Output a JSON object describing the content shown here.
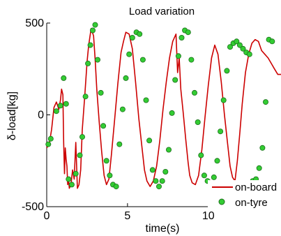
{
  "chart_data": {
    "type": "line",
    "title": "Load variation",
    "xlabel": "time(s)",
    "ylabel": "δ-load[kg]",
    "xlim": [
      0,
      14.5
    ],
    "ylim": [
      -500,
      500
    ],
    "xticks": [
      0,
      5,
      10
    ],
    "yticks": [
      -500,
      0,
      500
    ],
    "xtick_labels": [
      "0",
      "5",
      "10"
    ],
    "ytick_labels": [
      "-500",
      "0",
      "500"
    ],
    "grid": false,
    "legend_position": "bottom-right",
    "colors": {
      "on_board": "#cc0000",
      "on_tyre_fill": "#33cc33",
      "on_tyre_edge": "#1a6e1a",
      "axis": "#000000"
    },
    "series": [
      {
        "name": "on-board",
        "style": "line",
        "x": [
          0,
          0.15,
          0.3,
          0.45,
          0.6,
          0.75,
          0.85,
          0.92,
          1.0,
          1.05,
          1.1,
          1.15,
          1.2,
          1.25,
          1.3,
          1.35,
          1.4,
          1.5,
          1.6,
          1.7,
          1.8,
          1.9,
          2.0,
          2.1,
          2.2,
          2.35,
          2.5,
          2.6,
          2.75,
          2.9,
          3.0,
          3.1,
          3.25,
          3.4,
          3.55,
          3.7,
          3.85,
          4.0,
          4.2,
          4.4,
          4.6,
          4.75,
          4.9,
          5.1,
          5.3,
          5.5,
          5.7,
          5.9,
          6.05,
          6.2,
          6.4,
          6.6,
          6.8,
          7.0,
          7.2,
          7.4,
          7.6,
          7.8,
          8.0,
          8.1,
          8.2,
          8.3,
          8.45,
          8.6,
          8.75,
          8.85,
          9.0,
          9.2,
          9.4,
          9.6,
          9.8,
          10.0,
          10.2,
          10.4,
          10.6,
          10.8,
          11.0,
          11.2,
          11.35,
          11.5,
          11.65,
          11.8,
          11.95,
          12.1,
          12.3,
          12.5,
          12.7,
          12.9,
          13.1,
          13.3,
          13.5,
          13.7,
          13.9,
          14.1,
          14.3,
          14.5
        ],
        "y": [
          -180,
          -160,
          -80,
          40,
          70,
          30,
          80,
          140,
          110,
          -150,
          -320,
          -180,
          -240,
          -280,
          -380,
          -350,
          -400,
          -380,
          -300,
          -350,
          -150,
          -400,
          -380,
          -300,
          -80,
          100,
          290,
          380,
          470,
          430,
          300,
          140,
          -40,
          -200,
          -330,
          -380,
          -350,
          -220,
          -30,
          170,
          340,
          400,
          450,
          440,
          360,
          180,
          -20,
          -180,
          -300,
          -360,
          -390,
          -360,
          -280,
          -140,
          30,
          180,
          310,
          400,
          440,
          230,
          310,
          140,
          10,
          -130,
          -260,
          -330,
          -370,
          -380,
          -330,
          -190,
          -10,
          160,
          310,
          380,
          330,
          180,
          0,
          -160,
          -280,
          -340,
          -360,
          -250,
          -100,
          60,
          230,
          330,
          390,
          410,
          400,
          350,
          330,
          310,
          280,
          250,
          220,
          220
        ]
      },
      {
        "name": "on-tyre",
        "style": "markers",
        "x": [
          0.1,
          0.25,
          0.6,
          0.85,
          1.05,
          1.2,
          1.35,
          1.55,
          1.8,
          2.05,
          2.2,
          2.4,
          2.55,
          2.7,
          2.85,
          3.0,
          3.15,
          3.35,
          3.5,
          3.7,
          3.9,
          4.1,
          4.3,
          4.5,
          4.7,
          4.9,
          5.1,
          5.3,
          5.55,
          5.75,
          5.95,
          6.15,
          6.35,
          6.55,
          6.75,
          6.95,
          7.15,
          7.35,
          7.55,
          7.75,
          7.95,
          8.15,
          8.35,
          8.55,
          8.75,
          8.95,
          9.15,
          9.35,
          9.55,
          9.75,
          9.95,
          10.15,
          10.35,
          10.55,
          10.75,
          10.95,
          11.15,
          11.35,
          11.55,
          11.75,
          11.95,
          12.15,
          12.35,
          12.55,
          12.75,
          12.95,
          13.15,
          13.35,
          13.55,
          13.75,
          13.95
        ],
        "y": [
          -160,
          -130,
          20,
          50,
          200,
          60,
          -350,
          -380,
          -320,
          -220,
          -120,
          100,
          280,
          380,
          460,
          490,
          300,
          120,
          -60,
          -250,
          -330,
          -380,
          -390,
          -160,
          30,
          200,
          330,
          420,
          450,
          440,
          300,
          80,
          -140,
          -300,
          -360,
          -390,
          -360,
          -310,
          -190,
          10,
          190,
          320,
          420,
          460,
          450,
          300,
          120,
          -40,
          -220,
          -330,
          -360,
          -370,
          -340,
          -250,
          -90,
          80,
          240,
          370,
          390,
          400,
          380,
          360,
          340,
          330,
          -360,
          -350,
          -290,
          -180,
          70,
          410,
          400
        ]
      }
    ]
  }
}
